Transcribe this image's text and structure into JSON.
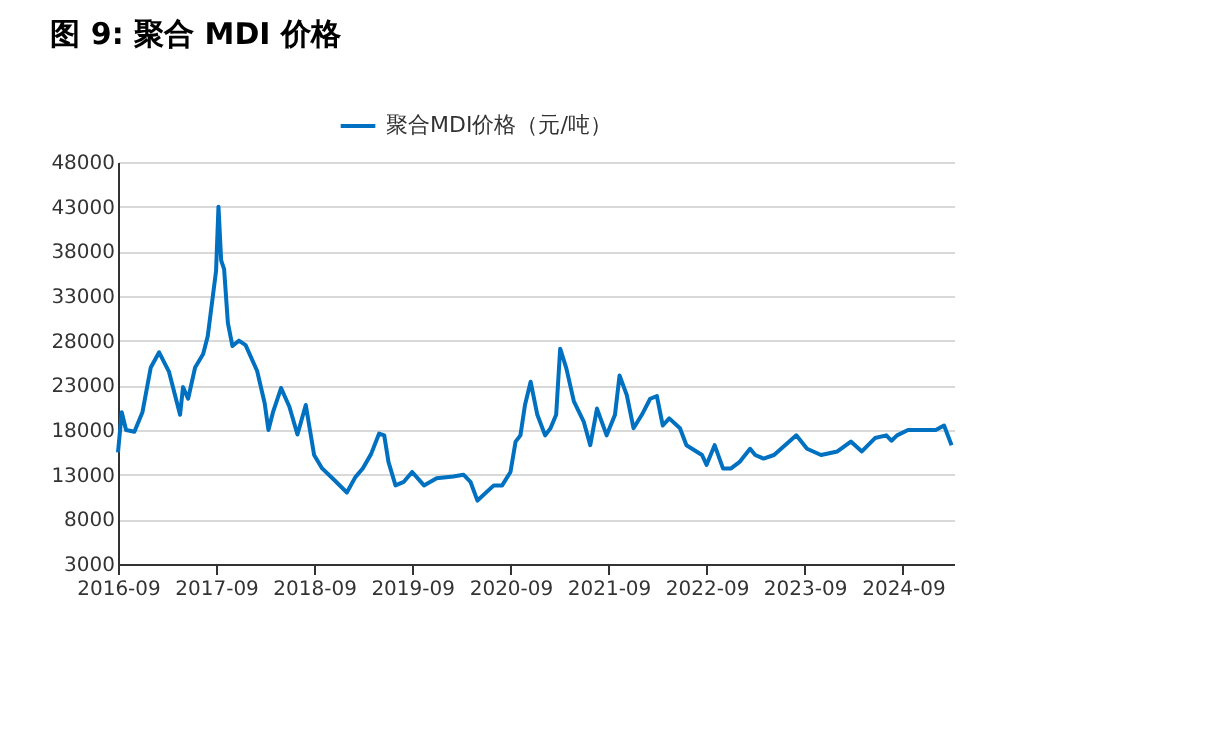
{
  "chart_data": {
    "type": "line",
    "title": "图 9:  聚合 MDI 价格",
    "x": [
      "2016-09-01",
      "2016-09-15",
      "2016-10-01",
      "2016-11-01",
      "2016-12-01",
      "2017-01-01",
      "2017-02-01",
      "2017-03-10",
      "2017-04-20",
      "2017-05-01",
      "2017-05-20",
      "2017-06-15",
      "2017-07-15",
      "2017-08-01",
      "2017-09-01",
      "2017-09-10",
      "2017-09-20",
      "2017-10-01",
      "2017-10-15",
      "2017-11-01",
      "2017-11-25",
      "2017-12-20",
      "2018-02-01",
      "2018-03-01",
      "2018-03-15",
      "2018-04-01",
      "2018-05-01",
      "2018-06-01",
      "2018-07-01",
      "2018-08-01",
      "2018-09-01",
      "2018-10-01",
      "2018-11-15",
      "2019-01-01",
      "2019-02-01",
      "2019-03-01",
      "2019-04-01",
      "2019-05-01",
      "2019-05-20",
      "2019-06-05",
      "2019-07-01",
      "2019-08-01",
      "2019-09-01",
      "2019-10-15",
      "2019-12-01",
      "2020-02-01",
      "2020-03-10",
      "2020-04-05",
      "2020-05-01",
      "2020-07-01",
      "2020-08-01",
      "2020-09-01",
      "2020-09-20",
      "2020-10-08",
      "2020-10-25",
      "2020-11-15",
      "2020-12-10",
      "2021-01-08",
      "2021-01-28",
      "2021-02-18",
      "2021-03-05",
      "2021-03-28",
      "2021-04-25",
      "2021-06-01",
      "2021-06-25",
      "2021-07-20",
      "2021-08-25",
      "2021-09-25",
      "2021-10-12",
      "2021-11-08",
      "2021-12-03",
      "2022-01-03",
      "2022-02-03",
      "2022-02-28",
      "2022-03-22",
      "2022-04-15",
      "2022-05-25",
      "2022-06-18",
      "2022-07-25",
      "2022-08-15",
      "2022-09-01",
      "2022-10-01",
      "2022-11-01",
      "2022-12-01",
      "2023-01-01",
      "2023-02-10",
      "2023-03-01",
      "2023-04-01",
      "2023-05-10",
      "2023-06-20",
      "2023-08-01",
      "2023-09-10",
      "2023-11-01",
      "2024-01-01",
      "2024-02-20",
      "2024-04-01",
      "2024-05-20",
      "2024-07-01",
      "2024-07-20",
      "2024-08-10",
      "2024-09-20",
      "2024-11-01",
      "2025-01-01",
      "2025-02-01",
      "2025-03-01"
    ],
    "series": [
      {
        "name": "聚合MDI价格（元/吨）",
        "color": "#0070c0",
        "values": [
          15500,
          20000,
          18000,
          17800,
          20000,
          25000,
          26700,
          24500,
          19700,
          22800,
          21500,
          25000,
          26500,
          28500,
          35800,
          43000,
          37000,
          36000,
          30000,
          27400,
          28000,
          27500,
          24600,
          21000,
          18000,
          20000,
          22700,
          20600,
          17500,
          20800,
          15200,
          13700,
          12400,
          11000,
          12700,
          13700,
          15300,
          17600,
          17400,
          14400,
          11800,
          12200,
          13300,
          11800,
          12600,
          12800,
          13000,
          12200,
          10100,
          11800,
          11800,
          13300,
          16700,
          17400,
          20800,
          23400,
          19700,
          17400,
          18200,
          19700,
          27100,
          24900,
          21200,
          18900,
          16300,
          20400,
          17400,
          19700,
          24100,
          21900,
          18200,
          19700,
          21500,
          21800,
          18500,
          19300,
          18200,
          16300,
          15600,
          15200,
          14100,
          16300,
          13700,
          13700,
          14400,
          15900,
          15200,
          14800,
          15200,
          16300,
          17400,
          15900,
          15200,
          15600,
          16700,
          15600,
          17100,
          17400,
          16800,
          17400,
          18000,
          18000,
          18000,
          18500,
          16300
        ]
      }
    ],
    "xlim": [
      "2016-09-01",
      "2025-03-10"
    ],
    "xticks": [
      "2016-09",
      "2017-09",
      "2018-09",
      "2019-09",
      "2020-09",
      "2021-09",
      "2022-09",
      "2023-09",
      "2024-09"
    ],
    "ylim": [
      3000,
      48000
    ],
    "yticks": [
      3000,
      8000,
      13000,
      18000,
      23000,
      28000,
      33000,
      38000,
      43000,
      48000
    ],
    "grid": "y",
    "legend": "top",
    "marker": "none",
    "line_style": "solid"
  }
}
